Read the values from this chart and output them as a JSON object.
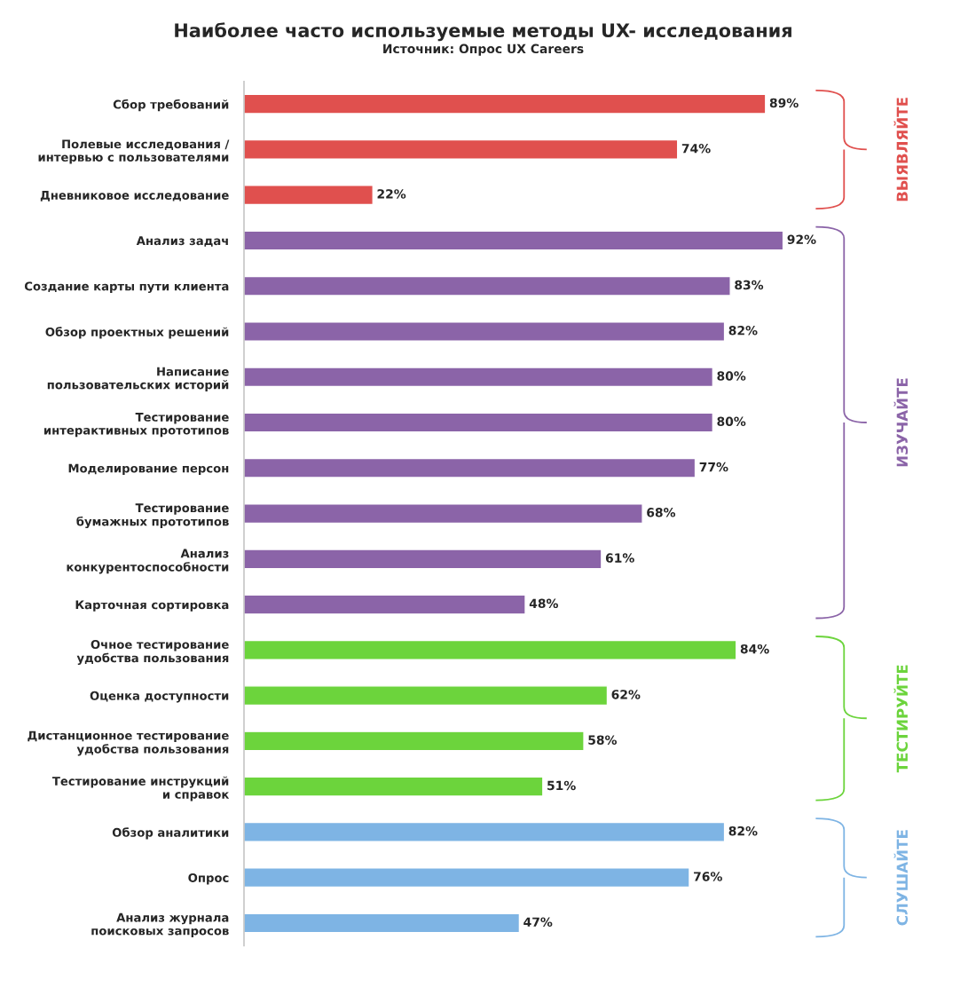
{
  "chart_data": {
    "type": "bar",
    "orientation": "horizontal",
    "title": "Наиболее часто используемые методы UX- исследования",
    "subtitle": "Источник: Опрос UX Careers",
    "categories": [
      "Сбор требований",
      "Полевые исследования /\nинтервью с пользователями",
      "Дневниковое исследование",
      "Анализ задач",
      "Создание карты пути клиента",
      "Обзор проектных решений",
      "Написание\nпользовательских историй",
      "Тестирование\nинтерактивных прототипов",
      "Моделирование персон",
      "Тестирование\nбумажных прототипов",
      "Анализ\nконкурентоспособности",
      "Карточная сортировка",
      "Очное тестирование\nудобства пользования",
      "Оценка доступности",
      "Дистанционное тестирование\nудобства пользования",
      "Тестирование инструкций\nи справок",
      "Обзор аналитики",
      "Опрос",
      "Анализ журнала\nпоисковых запросов"
    ],
    "values": [
      89,
      74,
      22,
      92,
      83,
      82,
      80,
      80,
      77,
      68,
      61,
      48,
      84,
      62,
      58,
      51,
      82,
      76,
      47
    ],
    "value_labels": [
      "89%",
      "74%",
      "22%",
      "92%",
      "83%",
      "82%",
      "80%",
      "80%",
      "77%",
      "68%",
      "61%",
      "48%",
      "84%",
      "62%",
      "58%",
      "51%",
      "82%",
      "76%",
      "47%"
    ],
    "colors": [
      "#e0504e",
      "#e0504e",
      "#e0504e",
      "#8b64a8",
      "#8b64a8",
      "#8b64a8",
      "#8b64a8",
      "#8b64a8",
      "#8b64a8",
      "#8b64a8",
      "#8b64a8",
      "#8b64a8",
      "#6cd43c",
      "#6cd43c",
      "#6cd43c",
      "#6cd43c",
      "#7eb4e4",
      "#7eb4e4",
      "#7eb4e4"
    ],
    "tick_labels": "y",
    "grid": false,
    "legend": false,
    "annotations": [
      "ВЫЯВЛЯЙТЕ",
      "ИЗУЧАЙТЕ",
      "ТЕСТИРУЙТЕ",
      "СЛУШАЙТЕ"
    ]
  }
}
